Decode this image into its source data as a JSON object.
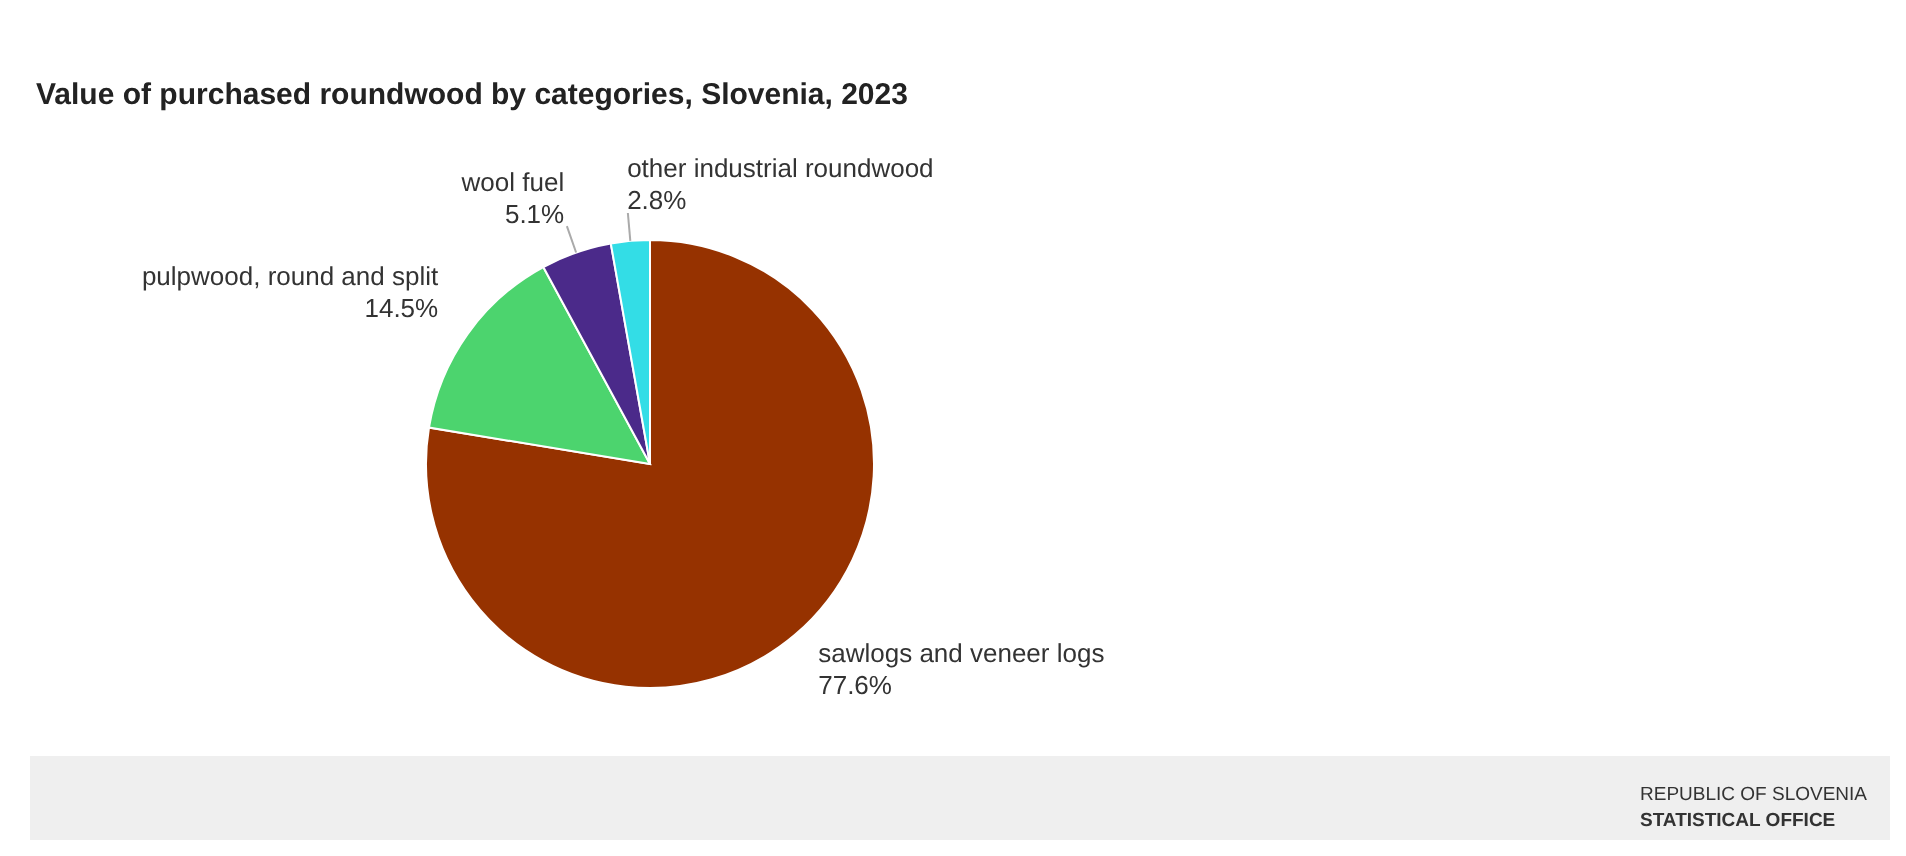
{
  "chart_data": {
    "type": "pie",
    "title": "Value of purchased roundwood by categories, Slovenia, 2023",
    "categories": [
      "sawlogs and veneer logs",
      "pulpwood, round and split",
      "wool fuel",
      "other industrial roundwood"
    ],
    "values": [
      77.6,
      14.5,
      5.1,
      2.8
    ],
    "colors": [
      "#963200",
      "#4cd46e",
      "#4b2a8a",
      "#33dde6"
    ],
    "value_labels": [
      "77.6%",
      "14.5%",
      "5.1%",
      "2.8%"
    ],
    "annotations": [
      "REPUBLIC OF SLOVENIA",
      "STATISTICAL OFFICE"
    ]
  }
}
